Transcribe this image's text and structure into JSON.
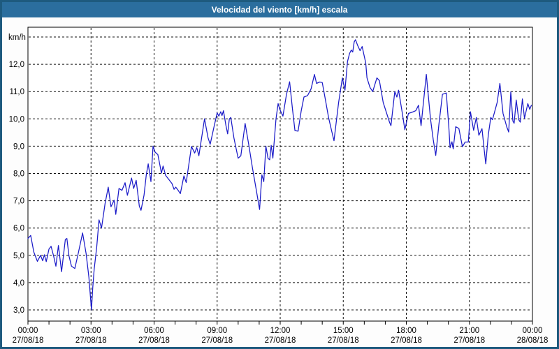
{
  "window": {
    "title": "Velocidad del viento [km/h] escala"
  },
  "colors": {
    "title_bar_bg": "#2B6E9E",
    "title_text": "#FFFFFF",
    "window_border": "#1E5A7E",
    "background": "#FDFDFD",
    "line": "#1B1BC8",
    "grid": "#111111",
    "plot_border": "#000000",
    "label_text": "#000000"
  },
  "chart_data": {
    "type": "line",
    "title": "Velocidad del viento [km/h] escala",
    "xlabel": "",
    "ylabel": "km/h",
    "xlim": [
      0,
      24
    ],
    "ylim": [
      2.6,
      13.35
    ],
    "grid": "dashed",
    "legend": "none",
    "y_ticks": [
      {
        "v": 3,
        "label": "3,0"
      },
      {
        "v": 4,
        "label": "4,0"
      },
      {
        "v": 5,
        "label": "5,0"
      },
      {
        "v": 6,
        "label": "6,0"
      },
      {
        "v": 7,
        "label": "7,0"
      },
      {
        "v": 8,
        "label": "8,0"
      },
      {
        "v": 9,
        "label": "9,0"
      },
      {
        "v": 10,
        "label": "10,0"
      },
      {
        "v": 11,
        "label": "11,0"
      },
      {
        "v": 12,
        "label": "12,0"
      },
      {
        "v": 13,
        "label": ""
      }
    ],
    "x_ticks": [
      {
        "h": 0,
        "time": "00:00",
        "date": "27/08/18"
      },
      {
        "h": 3,
        "time": "03:00",
        "date": "27/08/18"
      },
      {
        "h": 6,
        "time": "06:00",
        "date": "27/08/18"
      },
      {
        "h": 9,
        "time": "09:00",
        "date": "27/08/18"
      },
      {
        "h": 12,
        "time": "12:00",
        "date": "27/08/18"
      },
      {
        "h": 15,
        "time": "15:00",
        "date": "27/08/18"
      },
      {
        "h": 18,
        "time": "18:00",
        "date": "27/08/18"
      },
      {
        "h": 21,
        "time": "21:00",
        "date": "27/08/18"
      },
      {
        "h": 24,
        "time": "00:00",
        "date": "28/08/18"
      }
    ],
    "x_minor_step_hours": 1,
    "series": [
      {
        "name": "Velocidad del viento",
        "points": [
          [
            0.0,
            5.62
          ],
          [
            0.13,
            5.73
          ],
          [
            0.28,
            5.12
          ],
          [
            0.45,
            4.78
          ],
          [
            0.6,
            5.0
          ],
          [
            0.7,
            4.8
          ],
          [
            0.78,
            5.02
          ],
          [
            0.87,
            4.77
          ],
          [
            1.0,
            5.23
          ],
          [
            1.1,
            5.33
          ],
          [
            1.22,
            4.98
          ],
          [
            1.33,
            4.6
          ],
          [
            1.45,
            5.36
          ],
          [
            1.6,
            4.4
          ],
          [
            1.78,
            5.58
          ],
          [
            1.85,
            5.62
          ],
          [
            1.95,
            4.98
          ],
          [
            2.07,
            4.6
          ],
          [
            2.23,
            4.52
          ],
          [
            2.4,
            5.1
          ],
          [
            2.6,
            5.82
          ],
          [
            2.77,
            5.05
          ],
          [
            2.9,
            4.2
          ],
          [
            3.02,
            3.0
          ],
          [
            3.08,
            3.8
          ],
          [
            3.15,
            4.5
          ],
          [
            3.27,
            5.3
          ],
          [
            3.38,
            6.3
          ],
          [
            3.5,
            6.0
          ],
          [
            3.67,
            6.9
          ],
          [
            3.82,
            7.5
          ],
          [
            3.95,
            6.78
          ],
          [
            4.1,
            7.02
          ],
          [
            4.18,
            6.5
          ],
          [
            4.33,
            7.45
          ],
          [
            4.47,
            7.38
          ],
          [
            4.62,
            7.66
          ],
          [
            4.73,
            7.2
          ],
          [
            4.93,
            7.83
          ],
          [
            5.03,
            7.45
          ],
          [
            5.15,
            7.75
          ],
          [
            5.3,
            6.8
          ],
          [
            5.38,
            6.65
          ],
          [
            5.52,
            7.2
          ],
          [
            5.63,
            7.96
          ],
          [
            5.72,
            8.35
          ],
          [
            5.8,
            7.96
          ],
          [
            5.85,
            7.7
          ],
          [
            5.95,
            9.0
          ],
          [
            6.05,
            8.78
          ],
          [
            6.18,
            8.69
          ],
          [
            6.28,
            8.3
          ],
          [
            6.35,
            8.01
          ],
          [
            6.43,
            8.27
          ],
          [
            6.55,
            7.93
          ],
          [
            6.7,
            7.78
          ],
          [
            6.85,
            7.63
          ],
          [
            6.95,
            7.42
          ],
          [
            7.03,
            7.5
          ],
          [
            7.13,
            7.4
          ],
          [
            7.25,
            7.26
          ],
          [
            7.42,
            7.91
          ],
          [
            7.53,
            7.67
          ],
          [
            7.78,
            8.99
          ],
          [
            7.93,
            8.75
          ],
          [
            8.03,
            8.95
          ],
          [
            8.13,
            8.65
          ],
          [
            8.4,
            10.0
          ],
          [
            8.57,
            9.3
          ],
          [
            8.67,
            9.07
          ],
          [
            8.85,
            9.7
          ],
          [
            9.0,
            10.22
          ],
          [
            9.08,
            10.1
          ],
          [
            9.17,
            10.26
          ],
          [
            9.23,
            10.12
          ],
          [
            9.3,
            10.3
          ],
          [
            9.42,
            9.75
          ],
          [
            9.5,
            9.45
          ],
          [
            9.58,
            10.0
          ],
          [
            9.65,
            10.05
          ],
          [
            9.8,
            9.3
          ],
          [
            9.88,
            9.0
          ],
          [
            10.0,
            8.56
          ],
          [
            10.13,
            8.65
          ],
          [
            10.33,
            9.83
          ],
          [
            10.5,
            9.07
          ],
          [
            10.68,
            8.2
          ],
          [
            10.85,
            7.45
          ],
          [
            11.02,
            6.68
          ],
          [
            11.13,
            7.95
          ],
          [
            11.22,
            7.7
          ],
          [
            11.32,
            9.0
          ],
          [
            11.42,
            8.55
          ],
          [
            11.5,
            8.5
          ],
          [
            11.57,
            9.03
          ],
          [
            11.65,
            8.56
          ],
          [
            11.8,
            10.0
          ],
          [
            11.9,
            10.56
          ],
          [
            11.98,
            10.35
          ],
          [
            12.13,
            10.1
          ],
          [
            12.3,
            10.9
          ],
          [
            12.45,
            11.36
          ],
          [
            12.58,
            10.4
          ],
          [
            12.7,
            9.57
          ],
          [
            12.85,
            9.55
          ],
          [
            13.0,
            10.3
          ],
          [
            13.13,
            10.8
          ],
          [
            13.3,
            10.85
          ],
          [
            13.47,
            11.1
          ],
          [
            13.63,
            11.63
          ],
          [
            13.73,
            11.3
          ],
          [
            13.88,
            11.35
          ],
          [
            14.0,
            11.33
          ],
          [
            14.15,
            10.7
          ],
          [
            14.3,
            10.05
          ],
          [
            14.45,
            9.55
          ],
          [
            14.56,
            9.2
          ],
          [
            14.78,
            10.6
          ],
          [
            14.96,
            11.5
          ],
          [
            15.08,
            11.05
          ],
          [
            15.2,
            12.1
          ],
          [
            15.3,
            12.4
          ],
          [
            15.38,
            12.52
          ],
          [
            15.45,
            12.45
          ],
          [
            15.52,
            12.82
          ],
          [
            15.58,
            12.9
          ],
          [
            15.68,
            12.7
          ],
          [
            15.8,
            12.5
          ],
          [
            15.9,
            12.65
          ],
          [
            16.07,
            12.05
          ],
          [
            16.13,
            11.5
          ],
          [
            16.27,
            11.15
          ],
          [
            16.4,
            11.0
          ],
          [
            16.6,
            11.5
          ],
          [
            16.72,
            11.4
          ],
          [
            16.9,
            10.6
          ],
          [
            17.2,
            9.88
          ],
          [
            17.27,
            9.75
          ],
          [
            17.45,
            11.0
          ],
          [
            17.55,
            10.8
          ],
          [
            17.63,
            11.05
          ],
          [
            17.8,
            10.25
          ],
          [
            17.93,
            9.6
          ],
          [
            18.1,
            10.2
          ],
          [
            18.3,
            10.25
          ],
          [
            18.45,
            10.3
          ],
          [
            18.58,
            10.5
          ],
          [
            18.7,
            9.75
          ],
          [
            18.95,
            11.63
          ],
          [
            19.15,
            10.0
          ],
          [
            19.28,
            9.24
          ],
          [
            19.4,
            8.66
          ],
          [
            19.55,
            9.79
          ],
          [
            19.72,
            10.9
          ],
          [
            19.9,
            10.95
          ],
          [
            20.02,
            9.71
          ],
          [
            20.08,
            8.94
          ],
          [
            20.17,
            9.16
          ],
          [
            20.23,
            8.9
          ],
          [
            20.35,
            9.71
          ],
          [
            20.5,
            9.65
          ],
          [
            20.67,
            8.98
          ],
          [
            20.8,
            9.15
          ],
          [
            20.95,
            9.15
          ],
          [
            21.05,
            10.26
          ],
          [
            21.2,
            9.58
          ],
          [
            21.33,
            10.05
          ],
          [
            21.45,
            9.4
          ],
          [
            21.6,
            9.64
          ],
          [
            21.7,
            8.9
          ],
          [
            21.78,
            8.35
          ],
          [
            21.9,
            9.41
          ],
          [
            22.02,
            10.05
          ],
          [
            22.1,
            9.97
          ],
          [
            22.2,
            10.26
          ],
          [
            22.32,
            10.6
          ],
          [
            22.45,
            11.3
          ],
          [
            22.6,
            10.2
          ],
          [
            22.78,
            9.7
          ],
          [
            22.87,
            9.52
          ],
          [
            22.97,
            10.99
          ],
          [
            23.07,
            9.92
          ],
          [
            23.13,
            9.84
          ],
          [
            23.23,
            10.69
          ],
          [
            23.35,
            9.97
          ],
          [
            23.42,
            9.88
          ],
          [
            23.52,
            10.73
          ],
          [
            23.62,
            10.02
          ],
          [
            23.78,
            10.56
          ],
          [
            23.87,
            10.35
          ],
          [
            23.95,
            10.5
          ]
        ]
      }
    ]
  }
}
